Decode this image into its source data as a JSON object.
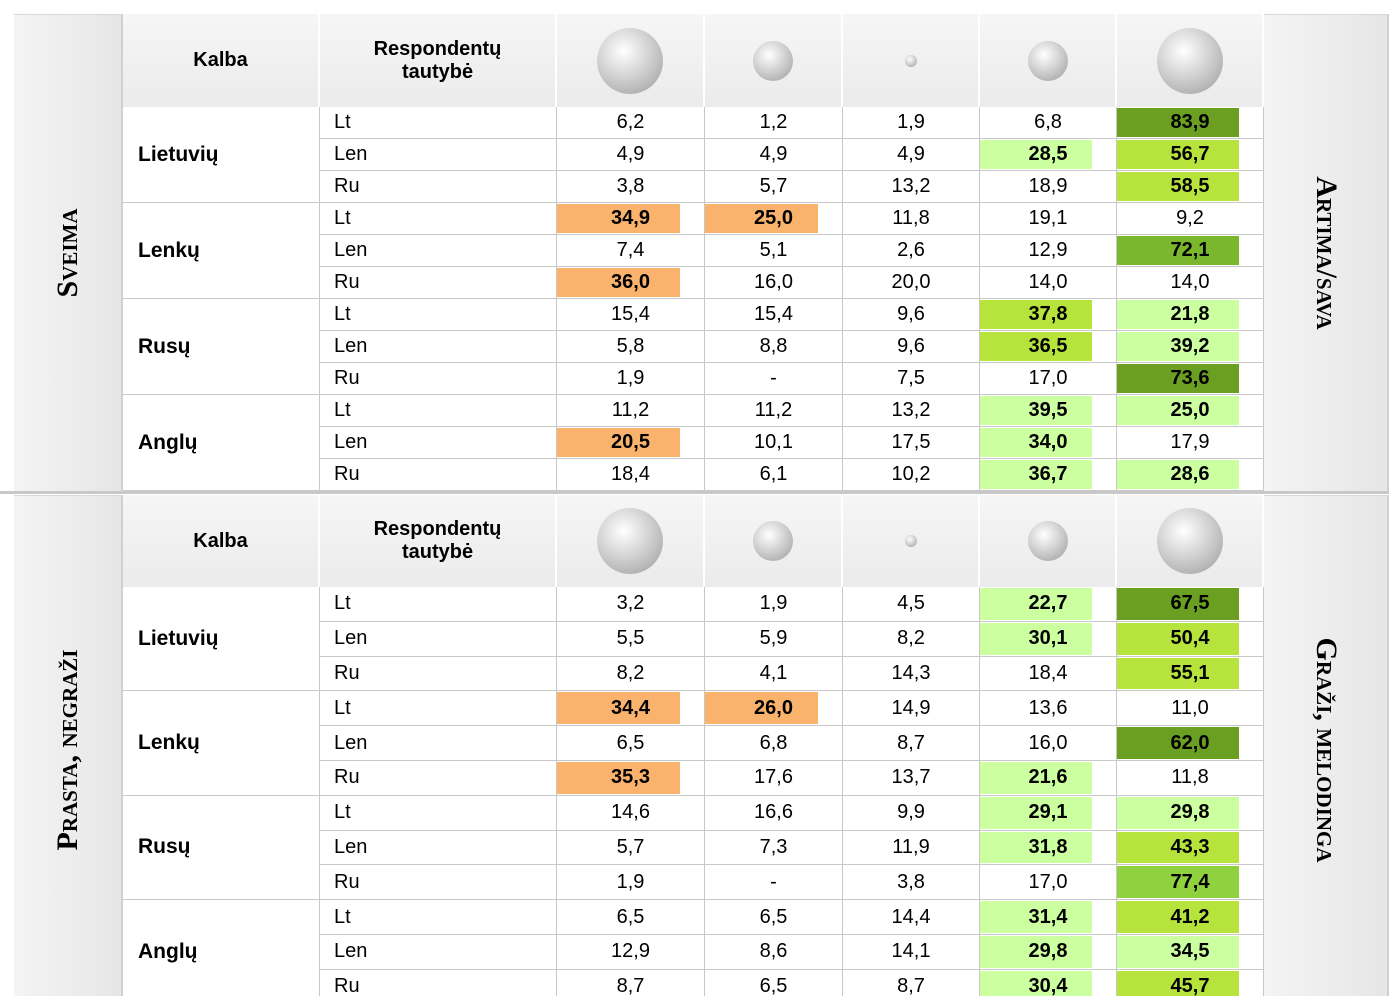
{
  "sections": [
    {
      "left_label": "Sveima",
      "right_label": "Artima/sava",
      "header": {
        "kalba": "Kalba",
        "tautybe": "Respondentų tautybė"
      },
      "groups": [
        {
          "name": "Lietuvių",
          "rows": [
            {
              "resp": "Lt",
              "cells": [
                {
                  "text": "6,2"
                },
                {
                  "text": "1,2"
                },
                {
                  "text": "1,9"
                },
                {
                  "text": "6,8"
                },
                {
                  "text": "83,9",
                  "fill": "#6a9f22"
                }
              ]
            },
            {
              "resp": "Len",
              "cells": [
                {
                  "text": "4,9"
                },
                {
                  "text": "4,9"
                },
                {
                  "text": "4,9"
                },
                {
                  "text": "28,5",
                  "fill": "#ccff9f"
                },
                {
                  "text": "56,7",
                  "fill": "#b6e43c"
                }
              ]
            },
            {
              "resp": "Ru",
              "cells": [
                {
                  "text": "3,8"
                },
                {
                  "text": "5,7"
                },
                {
                  "text": "13,2"
                },
                {
                  "text": "18,9"
                },
                {
                  "text": "58,5",
                  "fill": "#b6e43c"
                }
              ]
            }
          ]
        },
        {
          "name": "Lenkų",
          "rows": [
            {
              "resp": "Lt",
              "cells": [
                {
                  "text": "34,9",
                  "fill": "#fab36c"
                },
                {
                  "text": "25,0",
                  "fill": "#fab36c"
                },
                {
                  "text": "11,8"
                },
                {
                  "text": "19,1"
                },
                {
                  "text": "9,2"
                }
              ]
            },
            {
              "resp": "Len",
              "cells": [
                {
                  "text": "7,4"
                },
                {
                  "text": "5,1"
                },
                {
                  "text": "2,6"
                },
                {
                  "text": "12,9"
                },
                {
                  "text": "72,1",
                  "fill": "#7ab72c"
                }
              ]
            },
            {
              "resp": "Ru",
              "cells": [
                {
                  "text": "36,0",
                  "fill": "#fab36c"
                },
                {
                  "text": "16,0"
                },
                {
                  "text": "20,0"
                },
                {
                  "text": "14,0"
                },
                {
                  "text": "14,0"
                }
              ]
            }
          ]
        },
        {
          "name": "Rusų",
          "rows": [
            {
              "resp": "Lt",
              "cells": [
                {
                  "text": "15,4"
                },
                {
                  "text": "15,4"
                },
                {
                  "text": "9,6"
                },
                {
                  "text": "37,8",
                  "fill": "#b6e43c"
                },
                {
                  "text": "21,8",
                  "fill": "#ccff9f"
                }
              ]
            },
            {
              "resp": "Len",
              "cells": [
                {
                  "text": "5,8"
                },
                {
                  "text": "8,8"
                },
                {
                  "text": "9,6"
                },
                {
                  "text": "36,5",
                  "fill": "#b6e43c"
                },
                {
                  "text": "39,2",
                  "fill": "#ccff9f"
                }
              ]
            },
            {
              "resp": "Ru",
              "cells": [
                {
                  "text": "1,9"
                },
                {
                  "text": "-"
                },
                {
                  "text": "7,5"
                },
                {
                  "text": "17,0"
                },
                {
                  "text": "73,6",
                  "fill": "#6a9f22"
                }
              ]
            }
          ]
        },
        {
          "name": "Anglų",
          "rows": [
            {
              "resp": "Lt",
              "cells": [
                {
                  "text": "11,2"
                },
                {
                  "text": "11,2"
                },
                {
                  "text": "13,2"
                },
                {
                  "text": "39,5",
                  "fill": "#ccff9f"
                },
                {
                  "text": "25,0",
                  "fill": "#ccff9f"
                }
              ]
            },
            {
              "resp": "Len",
              "cells": [
                {
                  "text": "20,5",
                  "fill": "#fab36c"
                },
                {
                  "text": "10,1"
                },
                {
                  "text": "17,5"
                },
                {
                  "text": "34,0",
                  "fill": "#ccff9f"
                },
                {
                  "text": "17,9"
                }
              ]
            },
            {
              "resp": "Ru",
              "cells": [
                {
                  "text": "18,4"
                },
                {
                  "text": "6,1"
                },
                {
                  "text": "10,2"
                },
                {
                  "text": "36,7",
                  "fill": "#ccff9f"
                },
                {
                  "text": "28,6",
                  "fill": "#ccff9f"
                }
              ]
            }
          ]
        }
      ]
    },
    {
      "left_label": "Prasta, negraži",
      "right_label": "Graži, melodinga",
      "header": {
        "kalba": "Kalba",
        "tautybe": "Respondentų tautybė"
      },
      "groups": [
        {
          "name": "Lietuvių",
          "rows": [
            {
              "resp": "Lt",
              "cells": [
                {
                  "text": "3,2"
                },
                {
                  "text": "1,9"
                },
                {
                  "text": "4,5"
                },
                {
                  "text": "22,7",
                  "fill": "#ccff9f"
                },
                {
                  "text": "67,5",
                  "fill": "#6a9f22"
                }
              ]
            },
            {
              "resp": "Len",
              "cells": [
                {
                  "text": "5,5"
                },
                {
                  "text": "5,9"
                },
                {
                  "text": "8,2"
                },
                {
                  "text": "30,1",
                  "fill": "#ccff9f"
                },
                {
                  "text": "50,4",
                  "fill": "#b6e43c"
                }
              ]
            },
            {
              "resp": "Ru",
              "cells": [
                {
                  "text": "8,2"
                },
                {
                  "text": "4,1"
                },
                {
                  "text": "14,3"
                },
                {
                  "text": "18,4"
                },
                {
                  "text": "55,1",
                  "fill": "#b6e43c"
                }
              ]
            }
          ]
        },
        {
          "name": "Lenkų",
          "rows": [
            {
              "resp": "Lt",
              "cells": [
                {
                  "text": "34,4",
                  "fill": "#fab36c"
                },
                {
                  "text": "26,0",
                  "fill": "#fab36c"
                },
                {
                  "text": "14,9"
                },
                {
                  "text": "13,6"
                },
                {
                  "text": "11,0"
                }
              ]
            },
            {
              "resp": "Len",
              "cells": [
                {
                  "text": "6,5"
                },
                {
                  "text": "6,8"
                },
                {
                  "text": "8,7"
                },
                {
                  "text": "16,0"
                },
                {
                  "text": "62,0",
                  "fill": "#6a9f22"
                }
              ]
            },
            {
              "resp": "Ru",
              "cells": [
                {
                  "text": "35,3",
                  "fill": "#fab36c"
                },
                {
                  "text": "17,6"
                },
                {
                  "text": "13,7"
                },
                {
                  "text": "21,6",
                  "fill": "#ccff9f"
                },
                {
                  "text": "11,8"
                }
              ]
            }
          ]
        },
        {
          "name": "Rusų",
          "rows": [
            {
              "resp": "Lt",
              "cells": [
                {
                  "text": "14,6"
                },
                {
                  "text": "16,6"
                },
                {
                  "text": "9,9"
                },
                {
                  "text": "29,1",
                  "fill": "#ccff9f"
                },
                {
                  "text": "29,8",
                  "fill": "#ccff9f"
                }
              ]
            },
            {
              "resp": "Len",
              "cells": [
                {
                  "text": "5,7"
                },
                {
                  "text": "7,3"
                },
                {
                  "text": "11,9"
                },
                {
                  "text": "31,8",
                  "fill": "#ccff9f"
                },
                {
                  "text": "43,3",
                  "fill": "#b6e43c"
                }
              ]
            },
            {
              "resp": "Ru",
              "cells": [
                {
                  "text": "1,9"
                },
                {
                  "text": "-"
                },
                {
                  "text": "3,8"
                },
                {
                  "text": "17,0"
                },
                {
                  "text": "77,4",
                  "fill": "#8fd13e"
                }
              ]
            }
          ]
        },
        {
          "name": "Anglų",
          "rows": [
            {
              "resp": "Lt",
              "cells": [
                {
                  "text": "6,5"
                },
                {
                  "text": "6,5"
                },
                {
                  "text": "14,4"
                },
                {
                  "text": "31,4",
                  "fill": "#ccff9f"
                },
                {
                  "text": "41,2",
                  "fill": "#b6e43c"
                }
              ]
            },
            {
              "resp": "Len",
              "cells": [
                {
                  "text": "12,9"
                },
                {
                  "text": "8,6"
                },
                {
                  "text": "14,1"
                },
                {
                  "text": "29,8",
                  "fill": "#ccff9f"
                },
                {
                  "text": "34,5",
                  "fill": "#ccff9f"
                }
              ]
            },
            {
              "resp": "Ru",
              "cells": [
                {
                  "text": "8,7"
                },
                {
                  "text": "6,5"
                },
                {
                  "text": "8,7"
                },
                {
                  "text": "30,4",
                  "fill": "#ccff9f"
                },
                {
                  "text": "45,7",
                  "fill": "#b6e43c"
                }
              ]
            }
          ]
        }
      ]
    }
  ]
}
